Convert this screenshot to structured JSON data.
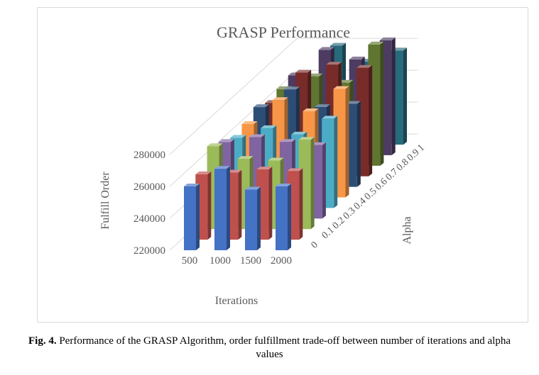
{
  "caption": {
    "label": "Fig. 4.",
    "text": "Performance of the GRASP Algorithm, order fulfillment trade-off between number of iterations and alpha values"
  },
  "chart_data": {
    "type": "bar",
    "subtype": "3d-column",
    "title": "GRASP Performance",
    "xlabel": "Iterations",
    "ylabel": "Fulfill Order",
    "zlabel": "Alpha",
    "categories": [
      "500",
      "1000",
      "1500",
      "2000"
    ],
    "series_labels": [
      "0",
      "0.1",
      "0.2",
      "0.3",
      "0.4",
      "0.5",
      "0.6",
      "0.7",
      "0.8",
      "0.9",
      "1"
    ],
    "y_ticks": [
      "220000",
      "240000",
      "260000",
      "280000"
    ],
    "ylim": [
      220000,
      300000
    ],
    "grid": true,
    "series": [
      {
        "color": "#4472c4",
        "values": [
          260000,
          271000,
          258000,
          260000
        ]
      },
      {
        "color": "#c0504d",
        "values": [
          261000,
          262000,
          264000,
          263000
        ]
      },
      {
        "color": "#9bbb59",
        "values": [
          272000,
          264000,
          263000,
          276000
        ]
      },
      {
        "color": "#8064a2",
        "values": [
          268000,
          271000,
          268000,
          266000
        ]
      },
      {
        "color": "#4bacc6",
        "values": [
          264000,
          270000,
          266000,
          276000
        ]
      },
      {
        "color": "#f79646",
        "values": [
          266000,
          281000,
          274000,
          288000
        ]
      },
      {
        "color": "#2c4d75",
        "values": [
          270000,
          281000,
          270000,
          272000
        ]
      },
      {
        "color": "#772c2a",
        "values": [
          266000,
          285000,
          290000,
          288000
        ]
      },
      {
        "color": "#5f7530",
        "values": [
          268000,
          276000,
          272000,
          296000
        ]
      },
      {
        "color": "#4d3b62",
        "values": [
          270000,
          286000,
          280000,
          292000
        ]
      },
      {
        "color": "#276a7c",
        "values": [
          262000,
          282000,
          272000,
          279000
        ]
      }
    ]
  }
}
